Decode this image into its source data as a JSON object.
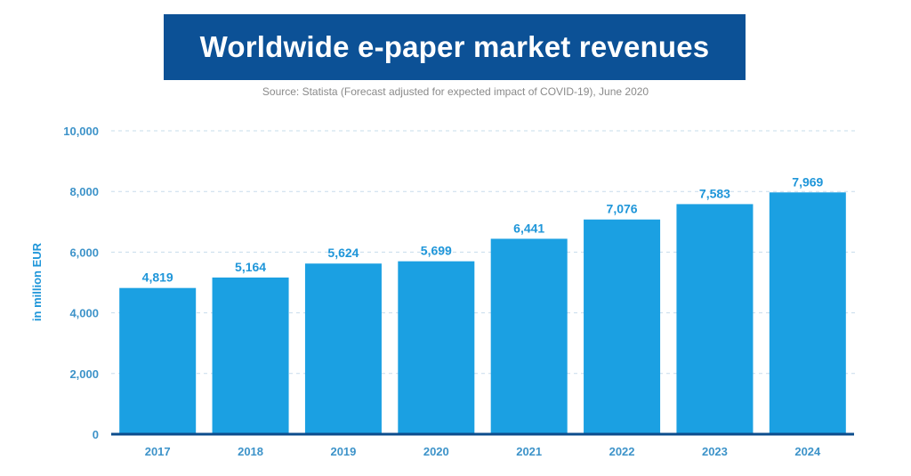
{
  "title": "Worldwide e-paper market revenues",
  "subtitle": "Source: Statista (Forecast adjusted for expected impact of COVID-19), June 2020",
  "colors": {
    "banner": "#0c5196",
    "bar": "#1ba0e2",
    "tick_label": "#3d93c9",
    "data_label": "#1f96d9",
    "baseline": "#0c4c8c",
    "grid": "#c7dceb"
  },
  "chart_data": {
    "type": "bar",
    "categories": [
      "2017",
      "2018",
      "2019",
      "2020",
      "2021",
      "2022",
      "2023",
      "2024"
    ],
    "values": [
      4819,
      5164,
      5624,
      5699,
      6441,
      7076,
      7583,
      7969
    ],
    "value_labels": [
      "4,819",
      "5,164",
      "5,624",
      "5,699",
      "6,441",
      "7,076",
      "7,583",
      "7,969"
    ],
    "ylabel": "in million EUR",
    "xlabel": "",
    "ylim": [
      0,
      10000
    ],
    "yticks": [
      0,
      2000,
      4000,
      6000,
      8000,
      10000
    ],
    "ytick_labels": [
      "0",
      "2,000",
      "4,000",
      "6,000",
      "8,000",
      "10,000"
    ],
    "grid": true,
    "grid_style": "dashed",
    "legend": "none"
  }
}
